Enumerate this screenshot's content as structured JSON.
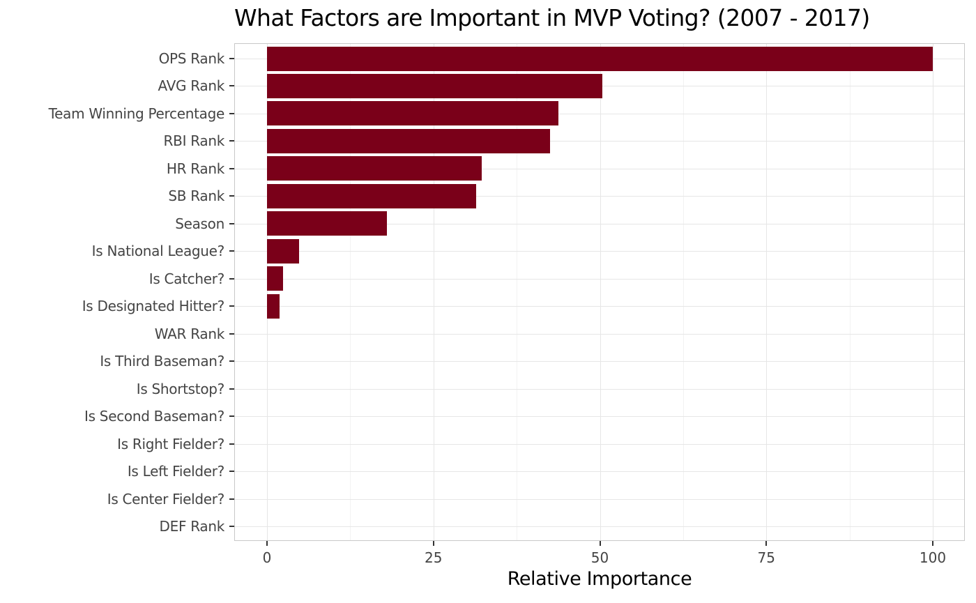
{
  "chart_data": {
    "type": "bar",
    "orientation": "horizontal",
    "title": "What Factors are Important in MVP Voting? (2007 - 2017)",
    "xlabel": "Relative Importance",
    "ylabel": "",
    "xlim": [
      0,
      100
    ],
    "xticks": [
      "0",
      "25",
      "50",
      "75",
      "100"
    ],
    "grid": true,
    "legend": null,
    "bar_color": "#7a0019",
    "categories": [
      "OPS Rank",
      "AVG Rank",
      "Team Winning Percentage",
      "RBI Rank",
      "HR Rank",
      "SB Rank",
      "Season",
      "Is National League?",
      "Is Catcher?",
      "Is Designated Hitter?",
      "WAR Rank",
      "Is Third Baseman?",
      "Is Shortstop?",
      "Is Second Baseman?",
      "Is Right Fielder?",
      "Is Left Fielder?",
      "Is Center Fielder?",
      "DEF Rank"
    ],
    "values": [
      100,
      50.4,
      43.8,
      42.5,
      32.3,
      31.4,
      18.0,
      4.8,
      2.4,
      1.9,
      0,
      0,
      0,
      0,
      0,
      0,
      0,
      0
    ]
  }
}
